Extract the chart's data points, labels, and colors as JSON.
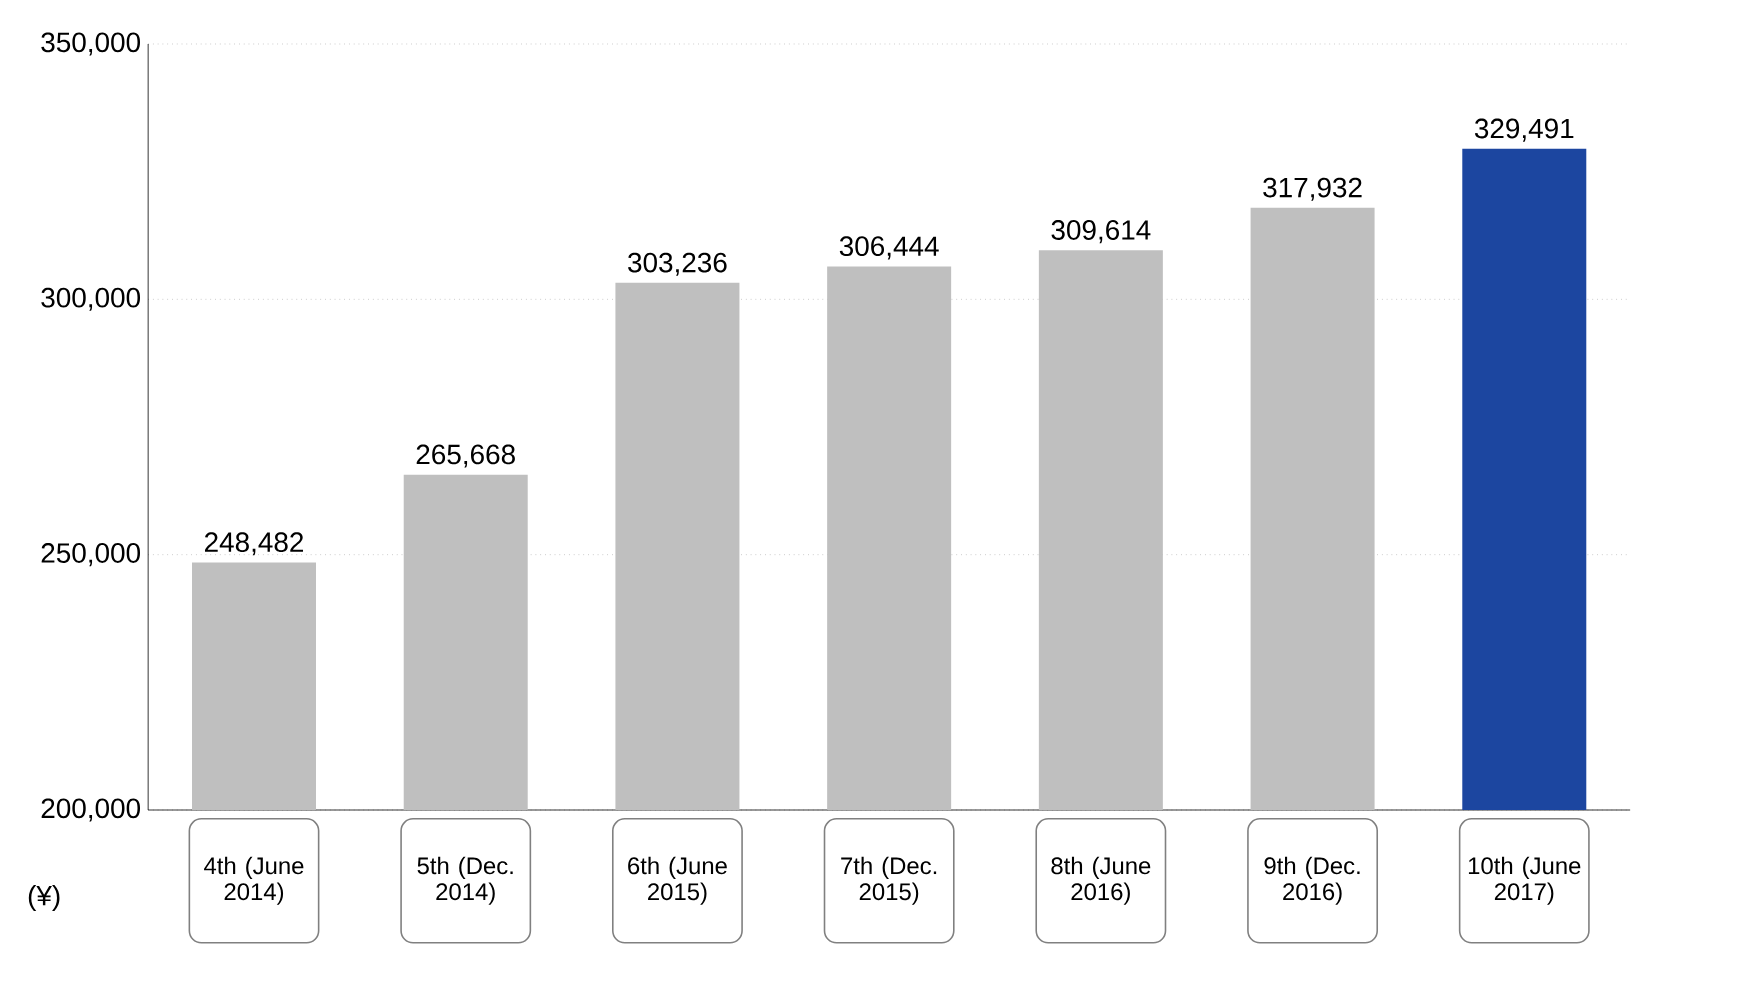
{
  "chart_data": {
    "type": "bar",
    "ylabel": "(¥)",
    "categories": [
      "4th (June 2014)",
      "5th (Dec. 2014)",
      "6th (June 2015)",
      "7th (Dec. 2015)",
      "8th (June 2016)",
      "9th (Dec. 2016)",
      "10th (June 2017)"
    ],
    "values": [
      248482,
      265668,
      303236,
      306444,
      309614,
      317932,
      329491
    ],
    "colors": [
      "#bfbfbf",
      "#bfbfbf",
      "#bfbfbf",
      "#bfbfbf",
      "#bfbfbf",
      "#bfbfbf",
      "#1c46a0"
    ],
    "ylim": [
      200000,
      350000
    ],
    "yticks": [
      {
        "value": 200000,
        "label": "200,000"
      },
      {
        "value": 250000,
        "label": "250,000"
      },
      {
        "value": 300000,
        "label": "300,000"
      },
      {
        "value": 350000,
        "label": "350,000"
      }
    ],
    "value_labels": [
      "248,482",
      "265,668",
      "303,236",
      "306,444",
      "309,614",
      "317,932",
      "329,491"
    ],
    "grid": "y"
  }
}
